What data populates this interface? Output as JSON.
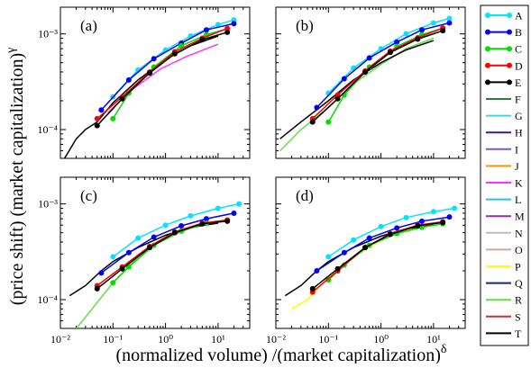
{
  "figure": {
    "xlabel": "(normalized volume) /(market capitalization)",
    "xlabel_sup": "δ",
    "ylabel": "(price shift)  (market capitalization)",
    "ylabel_sup": "γ"
  },
  "axes": {
    "x_tick_labels": [
      "10⁻²",
      "10⁻¹",
      "10⁰",
      "10¹"
    ],
    "y_tick_labels": [
      "10⁻⁴",
      "10⁻³"
    ]
  },
  "legend": {
    "placement": "right",
    "entries": [
      {
        "label": "A",
        "color": "#00e5ff",
        "marker": true
      },
      {
        "label": "B",
        "color": "#0000ff",
        "marker": true
      },
      {
        "label": "C",
        "color": "#00dd00",
        "marker": true
      },
      {
        "label": "D",
        "color": "#ff0000",
        "marker": true
      },
      {
        "label": "E",
        "color": "#000000",
        "marker": true
      },
      {
        "label": "F",
        "color": "#2e7d32",
        "marker": false
      },
      {
        "label": "G",
        "color": "#4dd0e1",
        "marker": false
      },
      {
        "label": "H",
        "color": "#4a148c",
        "marker": false
      },
      {
        "label": "I",
        "color": "#7e57c2",
        "marker": false
      },
      {
        "label": "J",
        "color": "#ff9800",
        "marker": false
      },
      {
        "label": "K",
        "color": "#ff33ff",
        "marker": false
      },
      {
        "label": "L",
        "color": "#26c6da",
        "marker": false
      },
      {
        "label": "M",
        "color": "#9c27b0",
        "marker": false
      },
      {
        "label": "N",
        "color": "#bdbdbd",
        "marker": false
      },
      {
        "label": "O",
        "color": "#d7a59a",
        "marker": false
      },
      {
        "label": "P",
        "color": "#ffff00",
        "marker": false
      },
      {
        "label": "Q",
        "color": "#1a237e",
        "marker": false
      },
      {
        "label": "R",
        "color": "#66dd44",
        "marker": false
      },
      {
        "label": "S",
        "color": "#d32f2f",
        "marker": false
      },
      {
        "label": "T",
        "color": "#000000",
        "marker": false
      }
    ]
  },
  "chart_data": [
    {
      "type": "line",
      "panel_label": "(a)",
      "x_scale": "log",
      "y_scale": "log",
      "xlim": [
        0.01,
        40
      ],
      "ylim": [
        5e-05,
        0.0019
      ],
      "grid": false,
      "series": [
        {
          "name": "A",
          "x": [
            0.1,
            0.3,
            1,
            3,
            10,
            20
          ],
          "y": [
            0.00022,
            0.00042,
            0.00068,
            0.00095,
            0.00125,
            0.0014
          ]
        },
        {
          "name": "B",
          "x": [
            0.06,
            0.2,
            0.6,
            2,
            6,
            20
          ],
          "y": [
            0.00016,
            0.00033,
            0.00055,
            0.0008,
            0.0011,
            0.00128
          ]
        },
        {
          "name": "C",
          "x": [
            0.1,
            0.2,
            0.6,
            2,
            6,
            15
          ],
          "y": [
            0.00013,
            0.00024,
            0.00045,
            0.00075,
            0.00098,
            0.00113
          ]
        },
        {
          "name": "D",
          "x": [
            0.05,
            0.15,
            0.5,
            1.5,
            5,
            15
          ],
          "y": [
            0.00013,
            0.00022,
            0.0004,
            0.00065,
            0.0009,
            0.00114
          ]
        },
        {
          "name": "E",
          "x": [
            0.05,
            0.15,
            0.5,
            1.5,
            5,
            15
          ],
          "y": [
            0.00011,
            0.00021,
            0.00039,
            0.00062,
            0.00087,
            0.00104
          ]
        },
        {
          "name": "K",
          "x": [
            0.08,
            0.25,
            0.8,
            2.5,
            10
          ],
          "y": [
            0.00015,
            0.00027,
            0.00043,
            0.00058,
            0.00078
          ]
        },
        {
          "name": "T",
          "x": [
            0.012,
            0.02,
            0.03,
            0.05,
            0.1,
            0.3,
            1,
            3,
            10
          ],
          "y": [
            5e-05,
            8e-05,
            0.0001,
            0.00012,
            0.00019,
            0.00033,
            0.00054,
            0.00075,
            0.00095
          ]
        }
      ]
    },
    {
      "type": "line",
      "panel_label": "(b)",
      "x_scale": "log",
      "y_scale": "log",
      "xlim": [
        0.01,
        40
      ],
      "ylim": [
        5e-05,
        0.0019
      ],
      "grid": false,
      "series": [
        {
          "name": "A",
          "x": [
            0.1,
            0.3,
            1,
            3,
            10,
            20
          ],
          "y": [
            0.00024,
            0.00044,
            0.0007,
            0.001,
            0.0013,
            0.00145
          ]
        },
        {
          "name": "B",
          "x": [
            0.06,
            0.2,
            0.6,
            2,
            6,
            20
          ],
          "y": [
            0.00017,
            0.00034,
            0.00056,
            0.00082,
            0.0011,
            0.0013
          ]
        },
        {
          "name": "C",
          "x": [
            0.1,
            0.2,
            0.6,
            2,
            6,
            15
          ],
          "y": [
            0.00012,
            0.00023,
            0.00045,
            0.00074,
            0.00098,
            0.00115
          ]
        },
        {
          "name": "D",
          "x": [
            0.05,
            0.15,
            0.5,
            1.5,
            5,
            15
          ],
          "y": [
            0.00013,
            0.00023,
            0.00041,
            0.00066,
            0.00091,
            0.00115
          ]
        },
        {
          "name": "E",
          "x": [
            0.05,
            0.15,
            0.5,
            1.5,
            5,
            15
          ],
          "y": [
            0.00012,
            0.00021,
            0.0004,
            0.00064,
            0.00088,
            0.00108
          ]
        },
        {
          "name": "R",
          "x": [
            0.012,
            0.03,
            0.1,
            0.3,
            1,
            3,
            10
          ],
          "y": [
            6e-05,
            0.0001,
            0.00017,
            0.0003,
            0.00048,
            0.0007,
            0.0009
          ]
        },
        {
          "name": "T",
          "x": [
            0.012,
            0.03,
            0.1,
            0.3,
            1,
            3,
            10
          ],
          "y": [
            8e-05,
            0.00012,
            0.0002,
            0.00033,
            0.0005,
            0.00068,
            0.00085
          ]
        }
      ]
    },
    {
      "type": "line",
      "panel_label": "(c)",
      "x_scale": "log",
      "y_scale": "log",
      "xlim": [
        0.01,
        40
      ],
      "ylim": [
        5e-05,
        0.0019
      ],
      "grid": false,
      "series": [
        {
          "name": "A",
          "x": [
            0.1,
            0.3,
            1,
            3,
            10,
            25
          ],
          "y": [
            0.00028,
            0.00044,
            0.0006,
            0.00075,
            0.0009,
            0.001
          ]
        },
        {
          "name": "B",
          "x": [
            0.06,
            0.2,
            0.6,
            2,
            6,
            20
          ],
          "y": [
            0.00019,
            0.00031,
            0.00045,
            0.00059,
            0.0007,
            0.0008
          ]
        },
        {
          "name": "C",
          "x": [
            0.1,
            0.2,
            0.6,
            2,
            6,
            15
          ],
          "y": [
            0.00015,
            0.00022,
            0.00037,
            0.00052,
            0.00063,
            0.00068
          ]
        },
        {
          "name": "D",
          "x": [
            0.05,
            0.15,
            0.5,
            1.5,
            5,
            15
          ],
          "y": [
            0.00014,
            0.00022,
            0.00036,
            0.00051,
            0.00063,
            0.00068
          ]
        },
        {
          "name": "E",
          "x": [
            0.05,
            0.15,
            0.5,
            1.5,
            5,
            15
          ],
          "y": [
            0.00013,
            0.00021,
            0.00035,
            0.0005,
            0.00062,
            0.00066
          ]
        },
        {
          "name": "R",
          "x": [
            0.02,
            0.04,
            0.1,
            0.3,
            1,
            3,
            10
          ],
          "y": [
            5e-05,
            8e-05,
            0.00015,
            0.00028,
            0.00044,
            0.00056,
            0.00064
          ]
        },
        {
          "name": "T",
          "x": [
            0.015,
            0.03,
            0.06,
            0.1,
            0.3,
            1,
            3,
            10
          ],
          "y": [
            0.00011,
            0.00014,
            0.0002,
            0.00025,
            0.00035,
            0.00047,
            0.00057,
            0.00063
          ]
        }
      ]
    },
    {
      "type": "line",
      "panel_label": "(d)",
      "x_scale": "log",
      "y_scale": "log",
      "xlim": [
        0.01,
        40
      ],
      "ylim": [
        5e-05,
        0.0019
      ],
      "grid": false,
      "series": [
        {
          "name": "A",
          "x": [
            0.1,
            0.3,
            1,
            3,
            10,
            25
          ],
          "y": [
            0.00028,
            0.00042,
            0.00058,
            0.00072,
            0.00083,
            0.0009
          ]
        },
        {
          "name": "B",
          "x": [
            0.06,
            0.2,
            0.6,
            2,
            6,
            20
          ],
          "y": [
            0.0002,
            0.00031,
            0.00044,
            0.00056,
            0.00066,
            0.00073
          ]
        },
        {
          "name": "C",
          "x": [
            0.1,
            0.2,
            0.6,
            2,
            6,
            15
          ],
          "y": [
            0.00016,
            0.00023,
            0.00037,
            0.00049,
            0.00057,
            0.00062
          ]
        },
        {
          "name": "D",
          "x": [
            0.05,
            0.15,
            0.5,
            1.5,
            5,
            15
          ],
          "y": [
            0.00012,
            0.0002,
            0.00035,
            0.00049,
            0.0006,
            0.00065
          ]
        },
        {
          "name": "E",
          "x": [
            0.05,
            0.15,
            0.5,
            1.5,
            5,
            15
          ],
          "y": [
            0.00013,
            0.00021,
            0.00035,
            0.00048,
            0.00059,
            0.00064
          ]
        },
        {
          "name": "P",
          "x": [
            0.02,
            0.04,
            0.1,
            0.3,
            1,
            3,
            10
          ],
          "y": [
            8e-05,
            0.0001,
            0.00017,
            0.00028,
            0.00042,
            0.00053,
            0.0006
          ]
        },
        {
          "name": "T",
          "x": [
            0.015,
            0.03,
            0.06,
            0.1,
            0.3,
            1,
            3,
            10
          ],
          "y": [
            0.00011,
            0.00014,
            0.0002,
            0.00025,
            0.00035,
            0.00046,
            0.00055,
            0.0006
          ]
        }
      ]
    }
  ]
}
